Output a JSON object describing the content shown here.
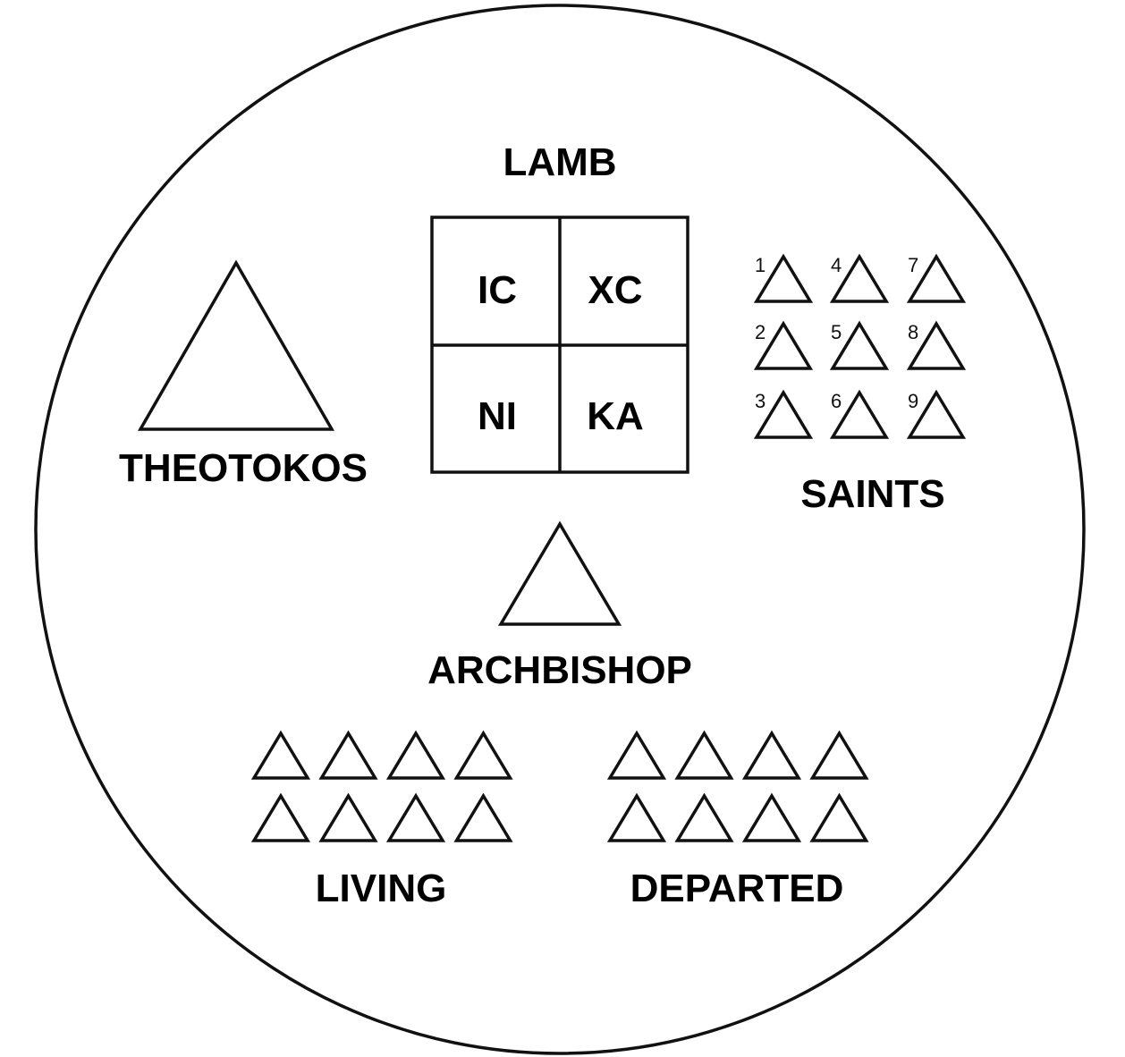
{
  "labels": {
    "lamb": "LAMB",
    "theotokos": "THEOTOKOS",
    "saints": "SAINTS",
    "archbishop": "ARCHBISHOP",
    "living": "LIVING",
    "departed": "DEPARTED"
  },
  "lamb_cells": [
    "IC",
    "XC",
    "NI",
    "KA"
  ],
  "saints_numbers": [
    "1",
    "2",
    "3",
    "4",
    "5",
    "6",
    "7",
    "8",
    "9"
  ],
  "living_count": 8,
  "departed_count": 8,
  "colors": {
    "stroke": "#111111",
    "text": "#000000",
    "background": "#ffffff"
  }
}
